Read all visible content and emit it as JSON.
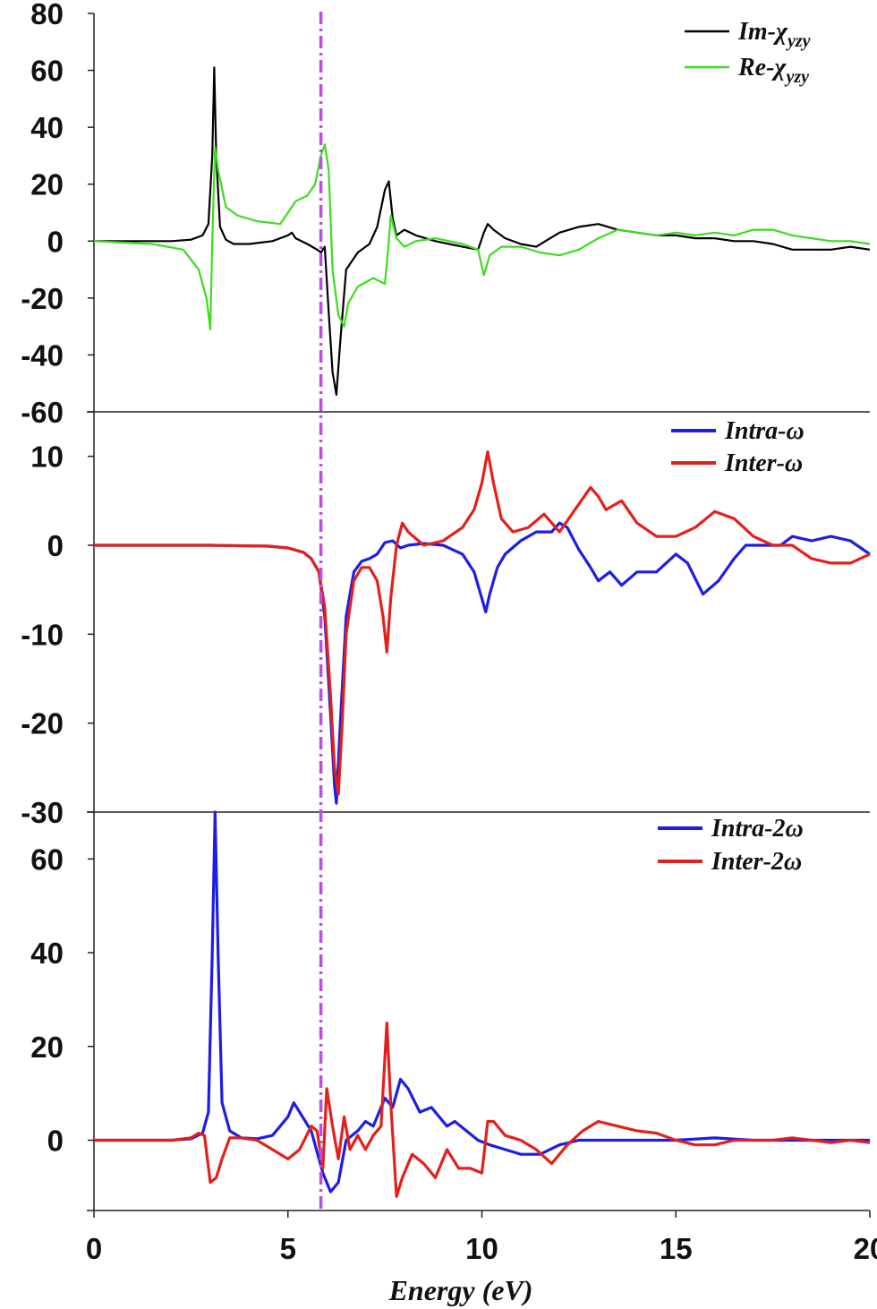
{
  "chart_data": [
    {
      "type": "line",
      "panel": "top",
      "x_range": [
        0,
        20
      ],
      "ylim": [
        -60,
        80
      ],
      "yticks": [
        80,
        60,
        40,
        20,
        0,
        -20,
        -40,
        -60
      ],
      "legend_position": "top-right",
      "series": [
        {
          "name": "Im-χ",
          "name_subscript": "yzy",
          "color": "#000000",
          "x": [
            0,
            2.0,
            2.5,
            2.8,
            2.95,
            3.05,
            3.1,
            3.15,
            3.25,
            3.4,
            3.6,
            4.0,
            4.6,
            5.0,
            5.1,
            5.2,
            5.5,
            5.75,
            5.85,
            5.95,
            6.05,
            6.15,
            6.25,
            6.35,
            6.5,
            6.8,
            7.1,
            7.3,
            7.5,
            7.6,
            7.7,
            7.8,
            8.0,
            8.3,
            8.8,
            9.5,
            9.9,
            10.05,
            10.15,
            10.3,
            10.6,
            11.0,
            11.4,
            12.0,
            12.5,
            13.0,
            13.5,
            14.0,
            14.5,
            15.0,
            15.5,
            16.0,
            16.5,
            17.0,
            17.5,
            18.0,
            18.5,
            19.0,
            19.5,
            20.0
          ],
          "y": [
            0,
            0,
            0.5,
            2,
            6,
            30,
            61,
            30,
            5,
            0.5,
            -1,
            -1,
            0,
            2,
            3,
            1,
            -1,
            -3,
            -4,
            -2,
            -25,
            -46,
            -54,
            -35,
            -10,
            -4,
            -1,
            5,
            18,
            21,
            8,
            2,
            4,
            2,
            0,
            -2,
            -3,
            3,
            6,
            4,
            1,
            -1,
            -2,
            3,
            5,
            6,
            4,
            3,
            2,
            2,
            1,
            1,
            0,
            0,
            -1,
            -3,
            -3,
            -3,
            -2,
            -3
          ]
        },
        {
          "name": "Re-χ",
          "name_subscript": "yzy",
          "color": "#3ddc1f",
          "x": [
            0,
            1.5,
            2.3,
            2.7,
            2.9,
            3.0,
            3.05,
            3.12,
            3.2,
            3.4,
            3.7,
            4.2,
            4.8,
            5.0,
            5.2,
            5.5,
            5.7,
            5.85,
            5.95,
            6.05,
            6.15,
            6.3,
            6.45,
            6.55,
            6.8,
            7.2,
            7.5,
            7.6,
            7.65,
            7.8,
            8.0,
            8.3,
            8.8,
            9.5,
            9.9,
            10.05,
            10.2,
            10.5,
            11.0,
            11.5,
            12.0,
            12.5,
            13.0,
            13.5,
            14.0,
            14.5,
            15.0,
            15.5,
            16.0,
            16.5,
            17.0,
            17.5,
            18.0,
            18.5,
            19.0,
            19.5,
            20.0
          ],
          "y": [
            0,
            -1,
            -3,
            -10,
            -20,
            -31,
            0,
            33,
            25,
            12,
            9,
            7,
            6,
            10,
            14,
            16,
            20,
            30,
            34,
            25,
            -10,
            -26,
            -30,
            -22,
            -16,
            -13,
            -15,
            0,
            9,
            1,
            -2,
            0,
            1,
            -1,
            -3,
            -12,
            -5,
            -2,
            -2,
            -4,
            -5,
            -3,
            1,
            4,
            3,
            2,
            3,
            2,
            3,
            2,
            4,
            4,
            2,
            1,
            0,
            0,
            -1
          ]
        }
      ]
    },
    {
      "type": "line",
      "panel": "middle",
      "x_range": [
        0,
        20
      ],
      "ylim": [
        -30,
        15
      ],
      "yticks": [
        10,
        0,
        -10,
        -20,
        -30
      ],
      "legend_position": "top-right",
      "series": [
        {
          "name": "Intra-ω",
          "color": "#1d1de6",
          "x": [
            0,
            3.0,
            4.5,
            5.0,
            5.4,
            5.6,
            5.8,
            5.95,
            6.1,
            6.2,
            6.25,
            6.35,
            6.5,
            6.7,
            6.9,
            7.1,
            7.3,
            7.5,
            7.7,
            7.9,
            8.1,
            8.5,
            9.0,
            9.5,
            9.8,
            10.0,
            10.1,
            10.2,
            10.4,
            10.6,
            11.0,
            11.4,
            11.8,
            12.0,
            12.2,
            12.5,
            12.8,
            13.0,
            13.3,
            13.6,
            14.0,
            14.5,
            15.0,
            15.3,
            15.7,
            16.1,
            16.5,
            16.8,
            17.2,
            17.7,
            18.0,
            18.5,
            19.0,
            19.5,
            20.0
          ],
          "y": [
            0,
            0,
            -0.1,
            -0.3,
            -0.8,
            -1.5,
            -3,
            -8,
            -19,
            -27,
            -29,
            -20,
            -8,
            -3,
            -1.8,
            -1.5,
            -1,
            0.3,
            0.5,
            -0.3,
            0,
            0.2,
            0,
            -1,
            -3,
            -6,
            -7.5,
            -5.5,
            -2.5,
            -1,
            0.5,
            1.5,
            1.5,
            2.5,
            2,
            -0.5,
            -2.5,
            -4,
            -3,
            -4.5,
            -3,
            -3,
            -1,
            -2,
            -5.5,
            -4,
            -1.5,
            0,
            0,
            0,
            1,
            0.5,
            1,
            0.5,
            -1
          ]
        },
        {
          "name": "Inter-ω",
          "color": "#e3201b",
          "x": [
            0,
            3.0,
            4.5,
            5.0,
            5.4,
            5.6,
            5.8,
            5.95,
            6.1,
            6.2,
            6.3,
            6.4,
            6.5,
            6.7,
            6.9,
            7.1,
            7.3,
            7.45,
            7.55,
            7.65,
            7.8,
            7.95,
            8.1,
            8.5,
            9.0,
            9.5,
            9.8,
            10.0,
            10.15,
            10.3,
            10.5,
            10.8,
            11.2,
            11.6,
            12.0,
            12.4,
            12.8,
            13.0,
            13.2,
            13.6,
            14.0,
            14.5,
            15.0,
            15.5,
            16.0,
            16.5,
            17.0,
            17.5,
            18.0,
            18.5,
            19.0,
            19.5,
            20.0
          ],
          "y": [
            0,
            0,
            -0.1,
            -0.3,
            -0.8,
            -1.5,
            -3,
            -7,
            -17,
            -25,
            -28,
            -20,
            -10,
            -4,
            -2.5,
            -2.5,
            -4,
            -8,
            -12,
            -6,
            0,
            2.5,
            1.5,
            0,
            0.5,
            2,
            4,
            7,
            10.5,
            7,
            3,
            1.5,
            2,
            3.5,
            1.5,
            4,
            6.5,
            5.5,
            4,
            5,
            2.5,
            1,
            1,
            2,
            3.8,
            3,
            1,
            0,
            0,
            -1.5,
            -2,
            -2,
            -1
          ]
        }
      ]
    },
    {
      "type": "line",
      "panel": "bottom",
      "x_range": [
        0,
        20
      ],
      "ylim": [
        -15,
        70
      ],
      "yticks": [
        60,
        40,
        20,
        0
      ],
      "xticks": [
        0,
        5,
        10,
        15,
        20
      ],
      "xlabel": "Energy (eV)",
      "legend_position": "top-right",
      "series": [
        {
          "name": "Intra-2ω",
          "color": "#1d1de6",
          "x": [
            0,
            2.0,
            2.5,
            2.8,
            2.95,
            3.05,
            3.12,
            3.2,
            3.3,
            3.5,
            3.8,
            4.2,
            4.6,
            5.0,
            5.15,
            5.3,
            5.6,
            5.9,
            6.1,
            6.3,
            6.5,
            6.8,
            7.0,
            7.2,
            7.5,
            7.7,
            7.9,
            8.1,
            8.4,
            8.7,
            8.9,
            9.1,
            9.3,
            9.6,
            9.9,
            10.2,
            10.6,
            11.0,
            11.5,
            12.0,
            12.5,
            13.0,
            14.0,
            15.0,
            16.0,
            17.0,
            18.0,
            19.0,
            20.0
          ],
          "y": [
            0,
            0,
            0.3,
            1.5,
            6,
            40,
            70,
            40,
            8,
            2,
            0.5,
            0.3,
            1,
            5,
            8,
            6,
            2,
            -7,
            -11,
            -9,
            0,
            2,
            4,
            3,
            9,
            7,
            13,
            11,
            6,
            7,
            5,
            3,
            4,
            2,
            0,
            -1,
            -2,
            -3,
            -3,
            -1,
            0,
            0,
            0,
            0,
            0.5,
            0,
            0,
            0,
            0
          ]
        },
        {
          "name": "Inter-2ω",
          "color": "#e3201b",
          "x": [
            0,
            2.0,
            2.5,
            2.7,
            2.85,
            3.0,
            3.15,
            3.3,
            3.5,
            3.8,
            4.2,
            4.6,
            5.0,
            5.3,
            5.6,
            5.75,
            5.9,
            6.0,
            6.15,
            6.3,
            6.45,
            6.6,
            6.8,
            7.0,
            7.2,
            7.4,
            7.55,
            7.65,
            7.8,
            7.95,
            8.2,
            8.5,
            8.8,
            9.1,
            9.4,
            9.7,
            10.0,
            10.15,
            10.3,
            10.6,
            11.0,
            11.4,
            11.8,
            12.2,
            12.6,
            13.0,
            13.5,
            14.0,
            14.5,
            15.0,
            15.5,
            16.0,
            16.5,
            17.0,
            17.5,
            18.0,
            18.5,
            19.0,
            19.5,
            20.0
          ],
          "y": [
            0,
            0,
            0.5,
            1.5,
            1,
            -9,
            -8,
            -4,
            0.5,
            0.5,
            0,
            -2,
            -4,
            -2,
            3,
            2,
            -6,
            11,
            3,
            -4,
            5,
            -2,
            1,
            -2,
            1,
            3,
            25,
            8,
            -12,
            -8,
            -3,
            -5,
            -8,
            -2,
            -6,
            -6,
            -7,
            4,
            4,
            1,
            0,
            -2,
            -5,
            -1,
            2,
            4,
            3,
            2,
            1.5,
            0,
            -1,
            -1,
            0,
            0,
            0,
            0.5,
            0,
            -0.5,
            0,
            -0.5
          ]
        }
      ]
    }
  ],
  "marker_line": {
    "x": 5.85,
    "color": "#b94fe6",
    "style": "dash-dot"
  }
}
